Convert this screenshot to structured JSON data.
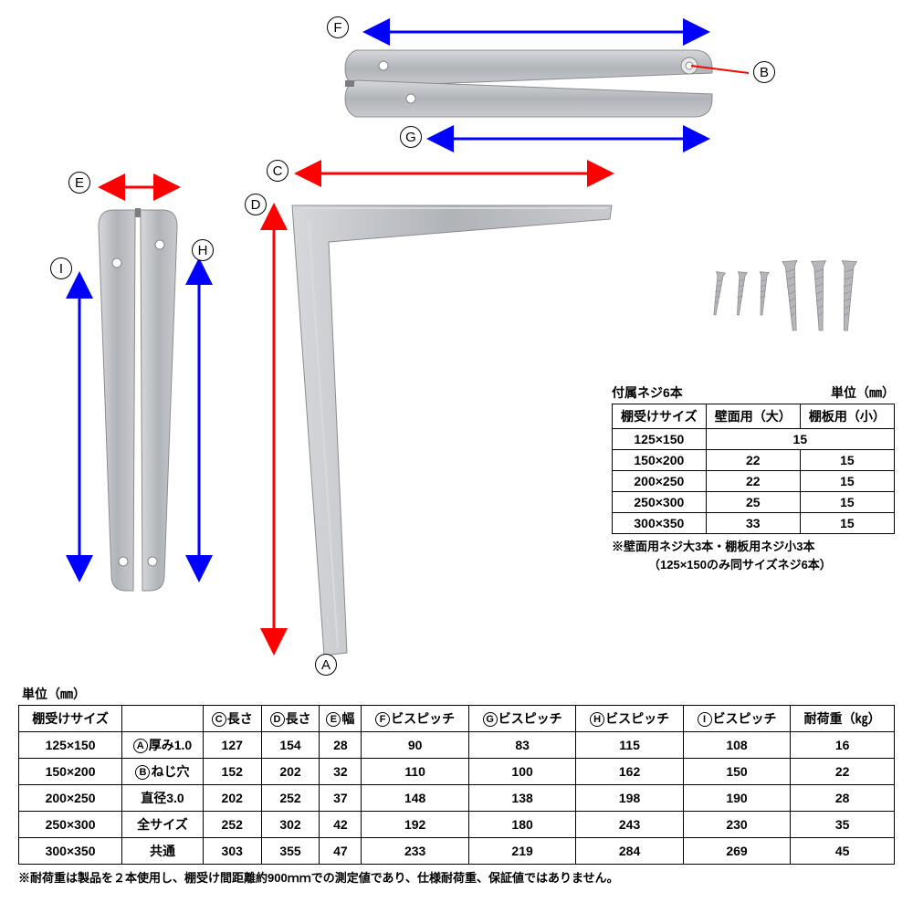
{
  "colors": {
    "bracket_light": "#c9cbcf",
    "bracket_mid": "#b0b3b8",
    "bracket_dark": "#96999e",
    "hole_light": "#d8dadd",
    "hole_dark": "#888a8e",
    "arrow_red": "#ff0000",
    "arrow_blue": "#0000ff",
    "screw_silver": "#b5b7ba",
    "screw_dark": "#8a8c8f"
  },
  "dim_labels": {
    "A": "A",
    "B": "B",
    "C": "C",
    "D": "D",
    "E": "E",
    "F": "F",
    "G": "G",
    "H": "H",
    "I": "I"
  },
  "screw_info": {
    "title_left": "付属ネジ6本",
    "title_right": "単位（㎜）",
    "headers": [
      "棚受けサイズ",
      "壁面用（大）",
      "棚板用（小）"
    ],
    "rows": [
      {
        "size": "125×150",
        "wall": "15",
        "shelf": "",
        "merged": true
      },
      {
        "size": "150×200",
        "wall": "22",
        "shelf": "15"
      },
      {
        "size": "200×250",
        "wall": "22",
        "shelf": "15"
      },
      {
        "size": "250×300",
        "wall": "25",
        "shelf": "15"
      },
      {
        "size": "300×350",
        "wall": "33",
        "shelf": "15"
      }
    ],
    "note1": "※壁面用ネジ大3本・棚板用ネジ小3本",
    "note2": "（125×150のみ同サイズネジ6本）"
  },
  "main_table": {
    "unit_label": "単位（㎜）",
    "col_labels": {
      "size": "棚受けサイズ",
      "spec": "",
      "C": "長さ",
      "D": "長さ",
      "E": "幅",
      "F": "ビスピッチ",
      "G": "ビスピッチ",
      "H": "ビスピッチ",
      "I": "ビスピッチ",
      "load": "耐荷重（㎏）"
    },
    "spec_col": [
      "厚み1.0",
      "ねじ穴",
      "直径3.0",
      "全サイズ",
      "共通"
    ],
    "spec_prefix": [
      "A",
      "B",
      "",
      "",
      ""
    ],
    "rows": [
      {
        "size": "125×150",
        "C": "127",
        "D": "154",
        "E": "28",
        "F": "90",
        "G": "83",
        "H": "115",
        "I": "108",
        "load": "16"
      },
      {
        "size": "150×200",
        "C": "152",
        "D": "202",
        "E": "32",
        "F": "110",
        "G": "100",
        "H": "162",
        "I": "150",
        "load": "22"
      },
      {
        "size": "200×250",
        "C": "202",
        "D": "252",
        "E": "37",
        "F": "148",
        "G": "138",
        "H": "198",
        "I": "190",
        "load": "28"
      },
      {
        "size": "250×300",
        "C": "252",
        "D": "302",
        "E": "42",
        "F": "192",
        "G": "180",
        "H": "243",
        "I": "230",
        "load": "35"
      },
      {
        "size": "300×350",
        "C": "303",
        "D": "355",
        "E": "47",
        "F": "233",
        "G": "219",
        "H": "284",
        "I": "269",
        "load": "45"
      }
    ],
    "note": "※耐荷重は製品を２本使用し、棚受け間距離約900ｍｍでの測定値であり、仕様耐荷重、保証値ではありません。"
  }
}
